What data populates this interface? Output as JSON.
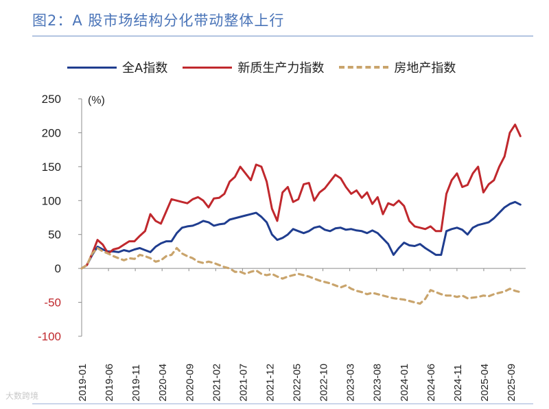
{
  "title": "图2：A 股市场结构分化带动整体上行",
  "watermark": "大数跨境",
  "chart_data": {
    "type": "line",
    "title": "图2：A 股市场结构分化带动整体上行",
    "xlabel": "",
    "ylabel": "(%)",
    "ylim": [
      -100,
      250
    ],
    "yticks": [
      -100,
      -50,
      0,
      50,
      100,
      150,
      200,
      250
    ],
    "xticks": [
      "2019-01",
      "2019-06",
      "2019-11",
      "2020-04",
      "2020-09",
      "2021-02",
      "2021-07",
      "2021-12",
      "2022-05",
      "2022-10",
      "2023-03",
      "2023-08",
      "2024-01",
      "2024-06",
      "2024-11",
      "2025-04",
      "2025-09"
    ],
    "x_range": [
      0,
      84
    ],
    "legend_position": "top",
    "colors": {
      "grid_axis": "#8c8c8c",
      "negative_tick": "#c0282d"
    },
    "series": [
      {
        "name": "全A指数",
        "color": "#1f3d8f",
        "style": "solid",
        "x": [
          0,
          1,
          2,
          3,
          4,
          5,
          6,
          7,
          8,
          9,
          10,
          11,
          12,
          13,
          14,
          15,
          16,
          17,
          18,
          19,
          20,
          21,
          22,
          23,
          24,
          25,
          26,
          27,
          28,
          29,
          30,
          31,
          32,
          33,
          34,
          35,
          36,
          37,
          38,
          39,
          40,
          41,
          42,
          43,
          44,
          45,
          46,
          47,
          48,
          49,
          50,
          51,
          52,
          53,
          54,
          55,
          56,
          57,
          58,
          59,
          60,
          61,
          62,
          63,
          64,
          65,
          66,
          67,
          68,
          69,
          70,
          71,
          72,
          73,
          74,
          75,
          76,
          77,
          78,
          79,
          80,
          81,
          82,
          83
        ],
        "values": [
          0,
          5,
          20,
          32,
          28,
          25,
          25,
          24,
          27,
          25,
          28,
          30,
          27,
          24,
          32,
          37,
          40,
          40,
          52,
          60,
          62,
          63,
          66,
          70,
          68,
          63,
          65,
          66,
          72,
          74,
          76,
          78,
          80,
          82,
          76,
          68,
          50,
          42,
          45,
          50,
          58,
          55,
          52,
          55,
          60,
          62,
          57,
          55,
          59,
          60,
          57,
          58,
          56,
          55,
          52,
          56,
          52,
          44,
          36,
          20,
          30,
          38,
          34,
          33,
          36,
          30,
          25,
          20,
          20,
          55,
          58,
          60,
          57,
          50,
          60,
          64,
          66,
          68,
          74,
          82,
          90,
          95,
          98,
          94
        ]
      },
      {
        "name": "新质生产力指数",
        "color": "#c0282d",
        "style": "solid",
        "x": [
          0,
          1,
          2,
          3,
          4,
          5,
          6,
          7,
          8,
          9,
          10,
          11,
          12,
          13,
          14,
          15,
          16,
          17,
          18,
          19,
          20,
          21,
          22,
          23,
          24,
          25,
          26,
          27,
          28,
          29,
          30,
          31,
          32,
          33,
          34,
          35,
          36,
          37,
          38,
          39,
          40,
          41,
          42,
          43,
          44,
          45,
          46,
          47,
          48,
          49,
          50,
          51,
          52,
          53,
          54,
          55,
          56,
          57,
          58,
          59,
          60,
          61,
          62,
          63,
          64,
          65,
          66,
          67,
          68,
          69,
          70,
          71,
          72,
          73,
          74,
          75,
          76,
          77,
          78,
          79,
          80,
          81,
          82,
          83
        ],
        "values": [
          0,
          5,
          22,
          42,
          35,
          22,
          28,
          30,
          35,
          40,
          40,
          48,
          55,
          80,
          70,
          66,
          84,
          102,
          100,
          98,
          96,
          102,
          105,
          100,
          90,
          103,
          104,
          110,
          128,
          135,
          150,
          140,
          130,
          153,
          150,
          128,
          88,
          70,
          112,
          120,
          98,
          102,
          124,
          126,
          100,
          112,
          118,
          128,
          138,
          133,
          120,
          110,
          115,
          104,
          112,
          95,
          105,
          80,
          96,
          93,
          100,
          92,
          70,
          62,
          60,
          58,
          62,
          55,
          55,
          110,
          130,
          140,
          120,
          123,
          140,
          150,
          112,
          124,
          130,
          150,
          165,
          200,
          212,
          195
        ]
      },
      {
        "name": "房地产指数",
        "color": "#c9a46c",
        "style": "dashed",
        "x": [
          0,
          1,
          2,
          3,
          4,
          5,
          6,
          7,
          8,
          9,
          10,
          11,
          12,
          13,
          14,
          15,
          16,
          17,
          18,
          19,
          20,
          21,
          22,
          23,
          24,
          25,
          26,
          27,
          28,
          29,
          30,
          31,
          32,
          33,
          34,
          35,
          36,
          37,
          38,
          39,
          40,
          41,
          42,
          43,
          44,
          45,
          46,
          47,
          48,
          49,
          50,
          51,
          52,
          53,
          54,
          55,
          56,
          57,
          58,
          59,
          60,
          61,
          62,
          63,
          64,
          65,
          66,
          67,
          68,
          69,
          70,
          71,
          72,
          73,
          74,
          75,
          76,
          77,
          78,
          79,
          80,
          81,
          82,
          83
        ],
        "values": [
          0,
          5,
          22,
          30,
          25,
          22,
          18,
          15,
          12,
          15,
          14,
          20,
          18,
          15,
          10,
          12,
          18,
          20,
          30,
          22,
          18,
          15,
          10,
          8,
          10,
          8,
          5,
          2,
          0,
          -5,
          -5,
          -8,
          -5,
          -3,
          -8,
          -10,
          -8,
          -12,
          -15,
          -12,
          -10,
          -8,
          -10,
          -12,
          -15,
          -18,
          -20,
          -22,
          -25,
          -28,
          -25,
          -30,
          -33,
          -35,
          -38,
          -36,
          -38,
          -40,
          -42,
          -44,
          -45,
          -46,
          -48,
          -50,
          -52,
          -45,
          -32,
          -35,
          -38,
          -40,
          -40,
          -42,
          -40,
          -44,
          -43,
          -42,
          -40,
          -41,
          -38,
          -36,
          -34,
          -30,
          -33,
          -35
        ]
      }
    ]
  }
}
